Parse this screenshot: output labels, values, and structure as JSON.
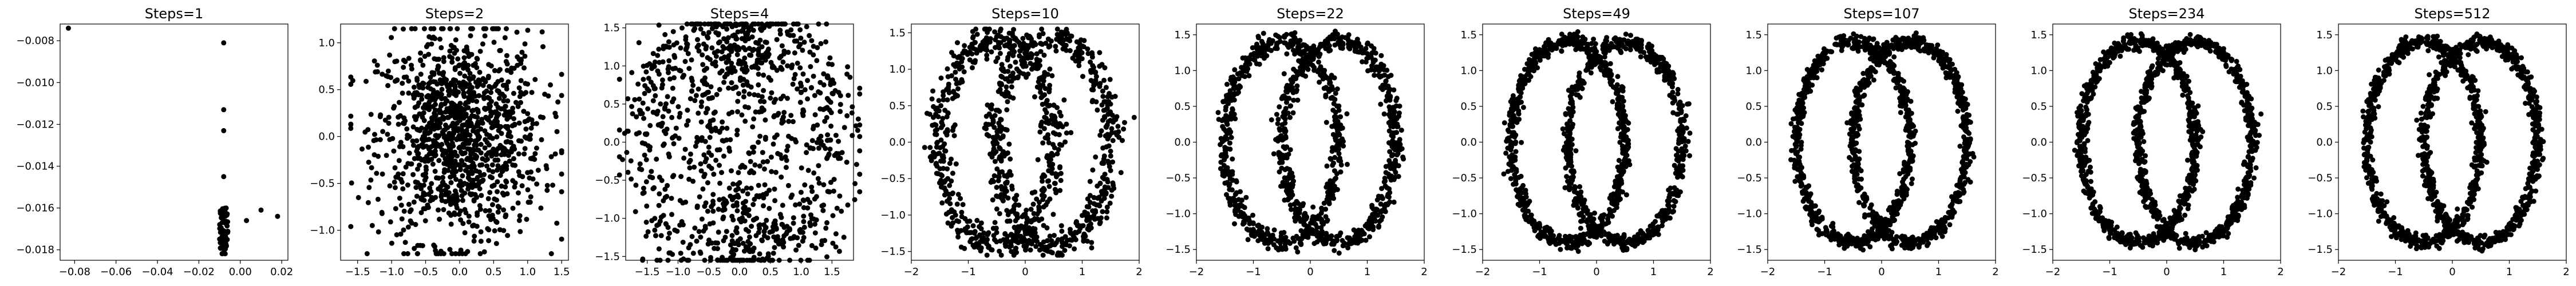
{
  "chart_data": [
    {
      "type": "scatter",
      "title": "Steps=1",
      "xlim": [
        -0.087,
        0.023
      ],
      "ylim": [
        -0.0185,
        -0.0072
      ],
      "xticks": [
        -0.08,
        -0.06,
        -0.04,
        -0.02,
        0.0,
        0.02
      ],
      "xtick_labels": [
        "−0.08",
        "−0.06",
        "−0.04",
        "−0.02",
        "0.00",
        "0.02"
      ],
      "yticks": [
        -0.008,
        -0.01,
        -0.012,
        -0.014,
        -0.016,
        -0.018
      ],
      "ytick_labels": [
        "−0.008",
        "−0.010",
        "−0.012",
        "−0.014",
        "−0.016",
        "−0.018"
      ],
      "points": [
        [
          -0.083,
          -0.0074
        ],
        [
          -0.008,
          -0.0081
        ],
        [
          -0.008,
          -0.0113
        ],
        [
          -0.008,
          -0.0123
        ],
        [
          -0.008,
          -0.0145
        ],
        [
          0.01,
          -0.0161
        ],
        [
          0.018,
          -0.0164
        ],
        [
          0.003,
          -0.0166
        ]
      ],
      "cluster": {
        "x": [
          -0.01,
          -0.006
        ],
        "y": [
          -0.0182,
          -0.016
        ],
        "count": 90
      }
    },
    {
      "type": "scatter",
      "title": "Steps=2",
      "xlim": [
        -1.75,
        1.6
      ],
      "ylim": [
        -1.32,
        1.2
      ],
      "xticks": [
        -1.5,
        -1.0,
        -0.5,
        0.0,
        0.5,
        1.0,
        1.5
      ],
      "xtick_labels": [
        "−1.5",
        "−1.0",
        "−0.5",
        "0.0",
        "0.5",
        "1.0",
        "1.5"
      ],
      "yticks": [
        -1.0,
        -0.5,
        0.0,
        0.5,
        1.0
      ],
      "ytick_labels": [
        "−1.0",
        "−0.5",
        "0.0",
        "0.5",
        "1.0"
      ],
      "shape": "blob",
      "count": 1200
    },
    {
      "type": "scatter",
      "title": "Steps=4",
      "xlim": [
        -1.85,
        1.85
      ],
      "ylim": [
        -1.55,
        1.55
      ],
      "xticks": [
        -1.5,
        -1.0,
        -0.5,
        0.0,
        0.5,
        1.0,
        1.5
      ],
      "xtick_labels": [
        "−1.5",
        "−1.0",
        "−0.5",
        "0.0",
        "0.5",
        "1.0",
        "1.5"
      ],
      "yticks": [
        -1.5,
        -1.0,
        -0.5,
        0.0,
        0.5,
        1.0,
        1.5
      ],
      "ytick_labels": [
        "−1.5",
        "−1.0",
        "−0.5",
        "0.0",
        "0.5",
        "1.0",
        "1.5"
      ],
      "shape": "rings",
      "spread": 0.45,
      "count": 1100
    },
    {
      "type": "scatter",
      "title": "Steps=10",
      "xlim": [
        -2.0,
        2.0
      ],
      "ylim": [
        -1.62,
        1.62
      ],
      "xticks": [
        -2,
        -1,
        0,
        1,
        2
      ],
      "xtick_labels": [
        "−2",
        "−1",
        "0",
        "1",
        "2"
      ],
      "yticks": [
        -1.5,
        -1.0,
        -0.5,
        0.0,
        0.5,
        1.0,
        1.5
      ],
      "ytick_labels": [
        "−1.5",
        "−1.0",
        "−0.5",
        "0.0",
        "0.5",
        "1.0",
        "1.5"
      ],
      "shape": "rings",
      "spread": 0.18,
      "count": 1100
    },
    {
      "type": "scatter",
      "title": "Steps=22",
      "xlim": [
        -2.0,
        2.0
      ],
      "ylim": [
        -1.65,
        1.65
      ],
      "xticks": [
        -2,
        -1,
        0,
        1,
        2
      ],
      "xtick_labels": [
        "−2",
        "−1",
        "0",
        "1",
        "2"
      ],
      "yticks": [
        -1.5,
        -1.0,
        -0.5,
        0.0,
        0.5,
        1.0,
        1.5
      ],
      "ytick_labels": [
        "−1.5",
        "−1.0",
        "−0.5",
        "0.0",
        "0.5",
        "1.0",
        "1.5"
      ],
      "shape": "rings",
      "spread": 0.11,
      "count": 1200
    },
    {
      "type": "scatter",
      "title": "Steps=49",
      "xlim": [
        -2.0,
        2.0
      ],
      "ylim": [
        -1.65,
        1.65
      ],
      "xticks": [
        -2,
        -1,
        0,
        1,
        2
      ],
      "xtick_labels": [
        "−2",
        "−1",
        "0",
        "1",
        "2"
      ],
      "yticks": [
        -1.5,
        -1.0,
        -0.5,
        0.0,
        0.5,
        1.0,
        1.5
      ],
      "ytick_labels": [
        "−1.5",
        "−1.0",
        "−0.5",
        "0.0",
        "0.5",
        "1.0",
        "1.5"
      ],
      "shape": "rings",
      "spread": 0.09,
      "count": 1300
    },
    {
      "type": "scatter",
      "title": "Steps=107",
      "xlim": [
        -2.0,
        2.0
      ],
      "ylim": [
        -1.65,
        1.65
      ],
      "xticks": [
        -2,
        -1,
        0,
        1,
        2
      ],
      "xtick_labels": [
        "−2",
        "−1",
        "0",
        "1",
        "2"
      ],
      "yticks": [
        -1.5,
        -1.0,
        -0.5,
        0.0,
        0.5,
        1.0,
        1.5
      ],
      "ytick_labels": [
        "−1.5",
        "−1.0",
        "−0.5",
        "0.0",
        "0.5",
        "1.0",
        "1.5"
      ],
      "shape": "rings",
      "spread": 0.08,
      "count": 1400
    },
    {
      "type": "scatter",
      "title": "Steps=234",
      "xlim": [
        -2.0,
        2.0
      ],
      "ylim": [
        -1.65,
        1.65
      ],
      "xticks": [
        -2,
        -1,
        0,
        1,
        2
      ],
      "xtick_labels": [
        "−2",
        "−1",
        "0",
        "1",
        "2"
      ],
      "yticks": [
        -1.5,
        -1.0,
        -0.5,
        0.0,
        0.5,
        1.0,
        1.5
      ],
      "ytick_labels": [
        "−1.5",
        "−1.0",
        "−0.5",
        "0.0",
        "0.5",
        "1.0",
        "1.5"
      ],
      "shape": "rings",
      "spread": 0.08,
      "count": 1400
    },
    {
      "type": "scatter",
      "title": "Steps=512",
      "xlim": [
        -2.0,
        2.0
      ],
      "ylim": [
        -1.65,
        1.65
      ],
      "xticks": [
        -2,
        -1,
        0,
        1,
        2
      ],
      "xtick_labels": [
        "−2",
        "−1",
        "0",
        "1",
        "2"
      ],
      "yticks": [
        -1.5,
        -1.0,
        -0.5,
        0.0,
        0.5,
        1.0,
        1.5
      ],
      "ytick_labels": [
        "−1.5",
        "−1.0",
        "−0.5",
        "0.0",
        "0.5",
        "1.0",
        "1.5"
      ],
      "shape": "rings",
      "spread": 0.08,
      "count": 1400
    }
  ]
}
